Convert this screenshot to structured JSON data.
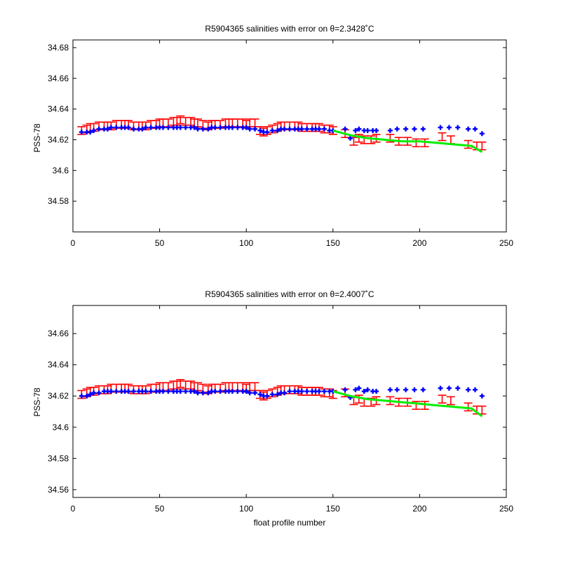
{
  "chart_data": [
    {
      "type": "scatter",
      "title": "R5904365 salinities with error on θ=2.3428˚C",
      "xlabel": "",
      "ylabel": "PSS-78",
      "xlim": [
        0,
        250
      ],
      "ylim": [
        34.56,
        34.685
      ],
      "xticks": [
        "0",
        "50",
        "100",
        "150",
        "200",
        "250"
      ],
      "yticks": [
        "34.58",
        "34.6",
        "34.62",
        "34.64",
        "34.66",
        "34.68"
      ],
      "series": [
        {
          "color": "#ff0000",
          "marker": "errorbar",
          "x": [
            5,
            8,
            10,
            12,
            15,
            18,
            20,
            22,
            25,
            28,
            30,
            32,
            35,
            38,
            40,
            42,
            45,
            48,
            50,
            52,
            55,
            58,
            60,
            62,
            65,
            68,
            70,
            72,
            75,
            78,
            80,
            82,
            85,
            88,
            90,
            92,
            95,
            98,
            100,
            102,
            105,
            108,
            110,
            112,
            115,
            118,
            120,
            122,
            125,
            128,
            130,
            132,
            135,
            138,
            140,
            142,
            145,
            148,
            150,
            157,
            162,
            165,
            168,
            172,
            175,
            183,
            188,
            193,
            198,
            203,
            213,
            218,
            228,
            233,
            236
          ],
          "y": [
            34.626,
            34.627,
            34.628,
            34.628,
            34.629,
            34.629,
            34.629,
            34.629,
            34.63,
            34.63,
            34.63,
            34.63,
            34.629,
            34.629,
            34.629,
            34.629,
            34.63,
            34.63,
            34.631,
            34.631,
            34.631,
            34.632,
            34.632,
            34.633,
            34.632,
            34.632,
            34.631,
            34.631,
            34.63,
            34.629,
            34.63,
            34.63,
            34.63,
            34.631,
            34.631,
            34.631,
            34.631,
            34.631,
            34.63,
            34.631,
            34.631,
            34.626,
            34.625,
            34.626,
            34.627,
            34.628,
            34.629,
            34.629,
            34.629,
            34.629,
            34.629,
            34.628,
            34.628,
            34.628,
            34.628,
            34.628,
            34.627,
            34.627,
            34.626,
            34.624,
            34.619,
            34.621,
            34.62,
            34.62,
            34.621,
            34.621,
            34.619,
            34.619,
            34.618,
            34.618,
            34.622,
            34.62,
            34.617,
            34.616,
            34.616
          ],
          "err": 0.0025
        },
        {
          "color": "#0000ff",
          "marker": "plus",
          "x": [
            5,
            8,
            10,
            12,
            15,
            18,
            20,
            22,
            25,
            28,
            30,
            32,
            35,
            38,
            40,
            42,
            45,
            48,
            50,
            52,
            55,
            58,
            60,
            62,
            65,
            68,
            70,
            72,
            75,
            78,
            80,
            82,
            85,
            88,
            90,
            92,
            95,
            98,
            100,
            102,
            105,
            108,
            110,
            112,
            115,
            118,
            120,
            122,
            125,
            128,
            130,
            132,
            135,
            138,
            140,
            142,
            145,
            148,
            150,
            157,
            160,
            163,
            165,
            168,
            170,
            173,
            175,
            183,
            187,
            192,
            197,
            202,
            212,
            217,
            222,
            228,
            232,
            236
          ],
          "y": [
            34.625,
            34.625,
            34.625,
            34.626,
            34.627,
            34.627,
            34.627,
            34.628,
            34.628,
            34.628,
            34.628,
            34.628,
            34.627,
            34.627,
            34.627,
            34.628,
            34.628,
            34.628,
            34.628,
            34.628,
            34.628,
            34.628,
            34.628,
            34.628,
            34.628,
            34.628,
            34.628,
            34.627,
            34.627,
            34.627,
            34.628,
            34.628,
            34.628,
            34.628,
            34.628,
            34.628,
            34.628,
            34.628,
            34.628,
            34.627,
            34.627,
            34.626,
            34.625,
            34.625,
            34.626,
            34.626,
            34.627,
            34.627,
            34.627,
            34.627,
            34.627,
            34.627,
            34.627,
            34.627,
            34.627,
            34.627,
            34.627,
            34.626,
            34.626,
            34.627,
            34.621,
            34.626,
            34.627,
            34.626,
            34.626,
            34.626,
            34.626,
            34.626,
            34.627,
            34.627,
            34.627,
            34.627,
            34.628,
            34.628,
            34.628,
            34.627,
            34.627,
            34.624
          ]
        },
        {
          "color": "#00ee00",
          "marker": "line",
          "x": [
            150,
            160,
            170,
            180,
            190,
            200,
            210,
            220,
            230,
            236
          ],
          "y": [
            34.626,
            34.623,
            34.621,
            34.62,
            34.619,
            34.619,
            34.618,
            34.617,
            34.616,
            34.612
          ]
        }
      ]
    },
    {
      "type": "scatter",
      "title": "R5904365 salinities with error on θ=2.4007˚C",
      "xlabel": "float profile number",
      "ylabel": "PSS-78",
      "xlim": [
        0,
        250
      ],
      "ylim": [
        34.555,
        34.678
      ],
      "xticks": [
        "0",
        "50",
        "100",
        "150",
        "200",
        "250"
      ],
      "yticks": [
        "34.56",
        "34.58",
        "34.6",
        "34.62",
        "34.64",
        "34.66"
      ],
      "series": [
        {
          "color": "#ff0000",
          "marker": "errorbar",
          "x": [
            5,
            8,
            10,
            12,
            15,
            18,
            20,
            22,
            25,
            28,
            30,
            32,
            35,
            38,
            40,
            42,
            45,
            48,
            50,
            52,
            55,
            58,
            60,
            62,
            65,
            68,
            70,
            72,
            75,
            78,
            80,
            82,
            85,
            88,
            90,
            92,
            95,
            98,
            100,
            102,
            105,
            108,
            110,
            112,
            115,
            118,
            120,
            122,
            125,
            128,
            130,
            132,
            135,
            138,
            140,
            142,
            145,
            148,
            150,
            157,
            162,
            165,
            168,
            172,
            175,
            183,
            188,
            193,
            198,
            203,
            213,
            218,
            228,
            233,
            236
          ],
          "y": [
            34.621,
            34.622,
            34.623,
            34.623,
            34.624,
            34.624,
            34.624,
            34.625,
            34.625,
            34.625,
            34.625,
            34.625,
            34.624,
            34.624,
            34.624,
            34.624,
            34.625,
            34.625,
            34.626,
            34.626,
            34.626,
            34.627,
            34.627,
            34.628,
            34.627,
            34.627,
            34.626,
            34.626,
            34.625,
            34.624,
            34.625,
            34.625,
            34.625,
            34.626,
            34.626,
            34.626,
            34.626,
            34.626,
            34.625,
            34.626,
            34.626,
            34.621,
            34.62,
            34.621,
            34.622,
            34.623,
            34.624,
            34.624,
            34.624,
            34.624,
            34.624,
            34.623,
            34.623,
            34.623,
            34.623,
            34.623,
            34.622,
            34.622,
            34.621,
            34.622,
            34.617,
            34.618,
            34.616,
            34.616,
            34.617,
            34.617,
            34.616,
            34.616,
            34.614,
            34.614,
            34.618,
            34.617,
            34.613,
            34.611,
            34.611
          ],
          "err": 0.0025
        },
        {
          "color": "#0000ff",
          "marker": "plus",
          "x": [
            5,
            8,
            10,
            12,
            15,
            18,
            20,
            22,
            25,
            28,
            30,
            32,
            35,
            38,
            40,
            42,
            45,
            48,
            50,
            52,
            55,
            58,
            60,
            62,
            65,
            68,
            70,
            72,
            75,
            78,
            80,
            82,
            85,
            88,
            90,
            92,
            95,
            98,
            100,
            102,
            105,
            108,
            110,
            112,
            115,
            118,
            120,
            122,
            125,
            128,
            130,
            132,
            135,
            138,
            140,
            142,
            145,
            148,
            150,
            157,
            160,
            163,
            165,
            168,
            170,
            173,
            175,
            183,
            187,
            192,
            197,
            202,
            212,
            217,
            222,
            228,
            232,
            236
          ],
          "y": [
            34.62,
            34.62,
            34.621,
            34.622,
            34.622,
            34.623,
            34.623,
            34.623,
            34.623,
            34.623,
            34.623,
            34.623,
            34.623,
            34.623,
            34.623,
            34.623,
            34.623,
            34.623,
            34.623,
            34.623,
            34.623,
            34.623,
            34.623,
            34.623,
            34.623,
            34.623,
            34.623,
            34.622,
            34.622,
            34.622,
            34.623,
            34.623,
            34.623,
            34.623,
            34.623,
            34.623,
            34.623,
            34.623,
            34.623,
            34.622,
            34.622,
            34.621,
            34.62,
            34.62,
            34.621,
            34.621,
            34.622,
            34.622,
            34.623,
            34.623,
            34.623,
            34.623,
            34.623,
            34.623,
            34.623,
            34.623,
            34.623,
            34.623,
            34.623,
            34.624,
            34.619,
            34.624,
            34.625,
            34.623,
            34.624,
            34.623,
            34.623,
            34.624,
            34.624,
            34.624,
            34.624,
            34.624,
            34.625,
            34.625,
            34.625,
            34.624,
            34.624,
            34.62
          ]
        },
        {
          "color": "#00ee00",
          "marker": "line",
          "x": [
            150,
            160,
            170,
            180,
            190,
            200,
            210,
            220,
            230,
            236
          ],
          "y": [
            34.623,
            34.62,
            34.618,
            34.617,
            34.616,
            34.615,
            34.614,
            34.613,
            34.612,
            34.607
          ]
        }
      ]
    }
  ]
}
